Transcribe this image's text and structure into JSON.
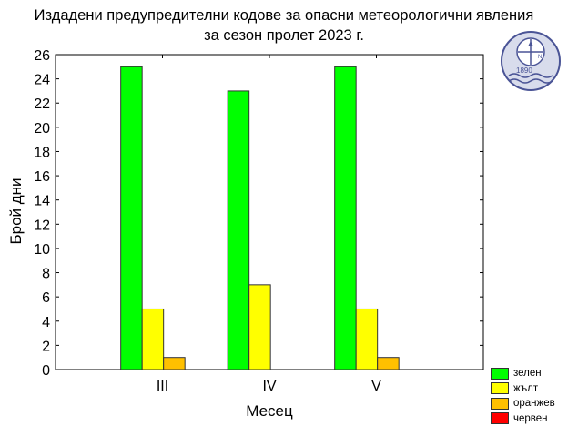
{
  "title_line1": "Издадени предупредителни кодове за опасни метеорологични явления",
  "title_line2": "за сезон пролет 2023 г.",
  "logo_year": "1890",
  "chart_data": {
    "type": "bar",
    "title": "Издадени предупредителни кодове за опасни метеорологични явления за сезон пролет 2023 г.",
    "xlabel": "Месец",
    "ylabel": "Брой дни",
    "categories": [
      "III",
      "IV",
      "V"
    ],
    "ylim": [
      0,
      26
    ],
    "yticks": [
      0,
      2,
      4,
      6,
      8,
      10,
      12,
      14,
      16,
      18,
      20,
      22,
      24,
      26
    ],
    "grid": false,
    "legend_position": "bottom-right",
    "series": [
      {
        "name": "зелен",
        "color": "#00ff00",
        "values": [
          25,
          23,
          25
        ]
      },
      {
        "name": "жълт",
        "color": "#ffff00",
        "values": [
          5,
          7,
          5
        ]
      },
      {
        "name": "оранжев",
        "color": "#ffc000",
        "values": [
          1,
          0,
          1
        ]
      },
      {
        "name": "червен",
        "color": "#ff0000",
        "values": [
          0,
          0,
          0
        ]
      }
    ]
  }
}
